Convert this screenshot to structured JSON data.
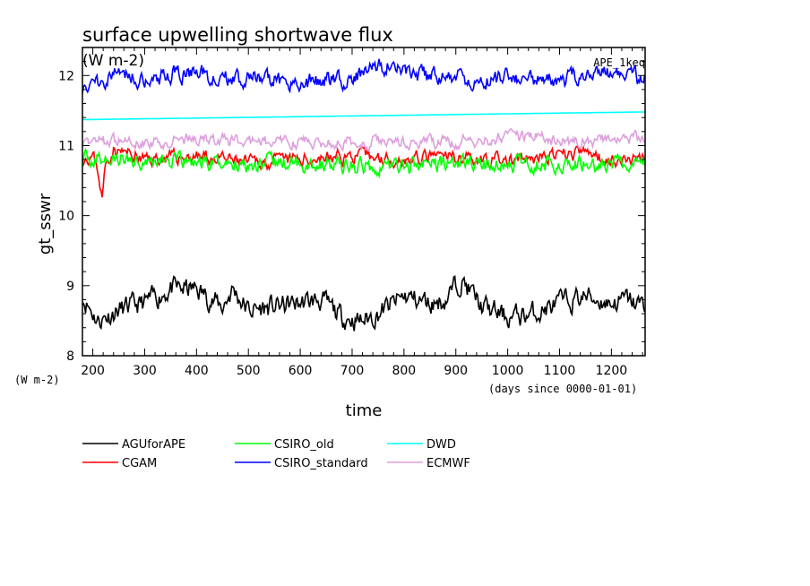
{
  "chart_data": {
    "type": "line",
    "title": "surface upwelling shortwave flux",
    "units_label": "(W m-2)",
    "top_right_label": "APE_1keq",
    "ylabel": "gt_sswr",
    "y_units": "(W m-2)",
    "xlabel": "time",
    "x_units": "(days since 0000-01-01)",
    "xlim": [
      180,
      1265
    ],
    "ylim": [
      8,
      12.4
    ],
    "x_ticks": [
      200,
      300,
      400,
      500,
      600,
      700,
      800,
      900,
      1000,
      1100,
      1200
    ],
    "y_ticks": [
      8,
      9,
      10,
      11,
      12
    ],
    "legend_position": "bottom",
    "series": [
      {
        "name": "AGUforAPE",
        "color": "#000000",
        "noise": 0.16,
        "seed": 11,
        "x": [
          180,
          210,
          250,
          300,
          350,
          400,
          450,
          470,
          500,
          550,
          600,
          640,
          680,
          720,
          750,
          800,
          850,
          880,
          910,
          950,
          1000,
          1050,
          1100,
          1150,
          1200,
          1230,
          1265
        ],
        "y": [
          8.85,
          8.5,
          8.65,
          8.75,
          8.95,
          8.95,
          8.7,
          8.95,
          8.65,
          8.7,
          8.75,
          8.8,
          8.55,
          8.5,
          8.6,
          8.85,
          8.75,
          8.8,
          9.1,
          8.7,
          8.55,
          8.6,
          8.75,
          8.85,
          8.75,
          8.8,
          8.7
        ]
      },
      {
        "name": "CGAM",
        "color": "#ff0000",
        "noise": 0.1,
        "seed": 23,
        "x": [
          180,
          200,
          210,
          218,
          225,
          240,
          300,
          400,
          500,
          600,
          700,
          800,
          900,
          1000,
          1100,
          1150,
          1200,
          1265
        ],
        "y": [
          10.85,
          10.85,
          10.65,
          10.25,
          10.75,
          10.95,
          10.8,
          10.85,
          10.75,
          10.8,
          10.85,
          10.8,
          10.85,
          10.78,
          10.85,
          10.9,
          10.8,
          10.8
        ]
      },
      {
        "name": "CSIRO_old",
        "color": "#00ff00",
        "noise": 0.12,
        "seed": 37,
        "x": [
          180,
          300,
          400,
          500,
          600,
          700,
          800,
          900,
          1000,
          1100,
          1200,
          1265
        ],
        "y": [
          10.8,
          10.8,
          10.75,
          10.75,
          10.75,
          10.7,
          10.72,
          10.75,
          10.72,
          10.75,
          10.72,
          10.75
        ]
      },
      {
        "name": "CSIRO_standard",
        "color": "#0000ff",
        "noise": 0.13,
        "seed": 51,
        "x": [
          180,
          250,
          300,
          350,
          400,
          450,
          500,
          600,
          700,
          780,
          800,
          900,
          1000,
          1100,
          1150,
          1200,
          1265
        ],
        "y": [
          11.85,
          12.05,
          11.95,
          12.0,
          12.05,
          11.95,
          11.95,
          11.9,
          11.95,
          12.2,
          12.0,
          11.95,
          11.95,
          11.9,
          12.05,
          12.0,
          11.95
        ]
      },
      {
        "name": "DWD",
        "color": "#00ffff",
        "noise": 0.0,
        "seed": 0,
        "x": [
          180,
          1265
        ],
        "y": [
          11.37,
          11.48
        ]
      },
      {
        "name": "ECMWF",
        "color": "#dda0dd",
        "noise": 0.09,
        "seed": 67,
        "x": [
          180,
          300,
          400,
          500,
          600,
          700,
          800,
          900,
          1000,
          1050,
          1100,
          1200,
          1265
        ],
        "y": [
          11.05,
          11.05,
          11.1,
          11.05,
          11.05,
          11.05,
          11.05,
          11.05,
          11.1,
          11.15,
          11.05,
          11.1,
          11.1
        ]
      }
    ]
  }
}
